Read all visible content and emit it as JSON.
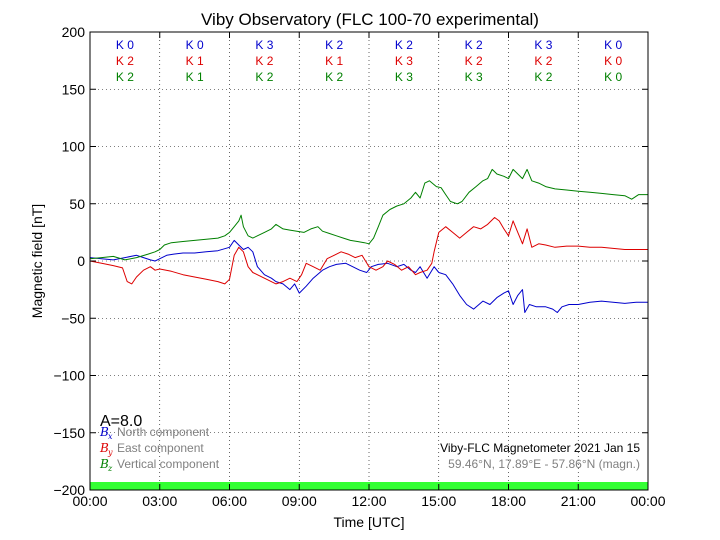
{
  "chart_data": {
    "type": "line",
    "title": "Viby Observatory (FLC 100-70 experimental)",
    "xlabel": "Time [UTC]",
    "ylabel": "Magnetic field [nT]",
    "xlim": [
      0,
      24
    ],
    "ylim": [
      -200,
      200
    ],
    "grid": true,
    "x_ticks": [
      0,
      3,
      6,
      9,
      12,
      15,
      18,
      21,
      24
    ],
    "x_tick_labels": [
      "00:00",
      "03:00",
      "06:00",
      "09:00",
      "12:00",
      "15:00",
      "18:00",
      "21:00",
      "00:00"
    ],
    "y_ticks": [
      -200,
      -150,
      -100,
      -50,
      0,
      50,
      100,
      150,
      200
    ],
    "y_tick_labels": [
      "−200",
      "−150",
      "−100",
      "−50",
      "0",
      "50",
      "100",
      "150",
      "200"
    ],
    "k_indices": {
      "centers": [
        1.5,
        4.5,
        7.5,
        10.5,
        13.5,
        16.5,
        19.5,
        22.5
      ],
      "rows": [
        {
          "color": "#0000cc",
          "labels": [
            "K 0",
            "K 0",
            "K 3",
            "K 2",
            "K 2",
            "K 2",
            "K 3",
            "K 0"
          ]
        },
        {
          "color": "#dd0000",
          "labels": [
            "K 2",
            "K 1",
            "K 2",
            "K 1",
            "K 3",
            "K 2",
            "K 2",
            "K 0"
          ]
        },
        {
          "color": "#008000",
          "labels": [
            "K 2",
            "K 1",
            "K 2",
            "K 2",
            "K 3",
            "K 3",
            "K 2",
            "K 0"
          ]
        }
      ]
    },
    "a_index": "A=8.0",
    "legend": {
      "position": "bottom-left",
      "entries": [
        {
          "symbol": "B",
          "sub": "x",
          "text": "North component",
          "color": "#0000cc"
        },
        {
          "symbol": "B",
          "sub": "y",
          "text": "East component",
          "color": "#dd0000"
        },
        {
          "symbol": "B",
          "sub": "z",
          "text": "Vertical component",
          "color": "#008000"
        }
      ]
    },
    "info": {
      "line1": "Viby-FLC Magnetometer 2021 Jan 15",
      "line2": "59.46°N, 17.89°E - 57.86°N (magn.)"
    },
    "status_bar_color": "#33ff33",
    "series": [
      {
        "name": "B_x North component",
        "color": "#0000cc",
        "points": [
          [
            0,
            3
          ],
          [
            0.5,
            2
          ],
          [
            1,
            1
          ],
          [
            1.5,
            3
          ],
          [
            2,
            5
          ],
          [
            2.3,
            3
          ],
          [
            2.6,
            1
          ],
          [
            2.8,
            0
          ],
          [
            3,
            2
          ],
          [
            3.3,
            5
          ],
          [
            3.6,
            6
          ],
          [
            4,
            7
          ],
          [
            4.5,
            7
          ],
          [
            5,
            8
          ],
          [
            5.5,
            9
          ],
          [
            6,
            12
          ],
          [
            6.2,
            18
          ],
          [
            6.4,
            14
          ],
          [
            6.6,
            10
          ],
          [
            6.8,
            12
          ],
          [
            7,
            8
          ],
          [
            7.2,
            -5
          ],
          [
            7.5,
            -12
          ],
          [
            7.8,
            -15
          ],
          [
            8,
            -18
          ],
          [
            8.3,
            -20
          ],
          [
            8.6,
            -25
          ],
          [
            8.8,
            -20
          ],
          [
            9,
            -28
          ],
          [
            9.3,
            -22
          ],
          [
            9.6,
            -15
          ],
          [
            10,
            -8
          ],
          [
            10.3,
            -5
          ],
          [
            10.6,
            -3
          ],
          [
            11,
            -2
          ],
          [
            11.3,
            -5
          ],
          [
            11.6,
            -8
          ],
          [
            11.9,
            -10
          ],
          [
            12.1,
            -5
          ],
          [
            12.4,
            -3
          ],
          [
            12.8,
            -2
          ],
          [
            13.2,
            -5
          ],
          [
            13.5,
            -3
          ],
          [
            13.8,
            -8
          ],
          [
            14,
            -10
          ],
          [
            14.2,
            -5
          ],
          [
            14.5,
            -15
          ],
          [
            14.8,
            -5
          ],
          [
            15,
            -10
          ],
          [
            15.3,
            -12
          ],
          [
            15.6,
            -20
          ],
          [
            15.9,
            -30
          ],
          [
            16.2,
            -38
          ],
          [
            16.5,
            -42
          ],
          [
            16.9,
            -35
          ],
          [
            17.2,
            -38
          ],
          [
            17.5,
            -32
          ],
          [
            17.8,
            -28
          ],
          [
            18,
            -26
          ],
          [
            18.2,
            -38
          ],
          [
            18.4,
            -30
          ],
          [
            18.6,
            -25
          ],
          [
            18.7,
            -45
          ],
          [
            18.9,
            -38
          ],
          [
            19.2,
            -40
          ],
          [
            19.6,
            -40
          ],
          [
            19.9,
            -42
          ],
          [
            20.1,
            -45
          ],
          [
            20.3,
            -40
          ],
          [
            20.6,
            -38
          ],
          [
            21,
            -38
          ],
          [
            21.5,
            -36
          ],
          [
            22,
            -35
          ],
          [
            22.5,
            -36
          ],
          [
            23,
            -37
          ],
          [
            23.5,
            -36
          ],
          [
            24,
            -36
          ]
        ]
      },
      {
        "name": "B_y East component",
        "color": "#dd0000",
        "points": [
          [
            0,
            0
          ],
          [
            0.5,
            -2
          ],
          [
            1,
            -4
          ],
          [
            1.4,
            -6
          ],
          [
            1.6,
            -18
          ],
          [
            1.8,
            -20
          ],
          [
            2,
            -14
          ],
          [
            2.3,
            -8
          ],
          [
            2.6,
            -5
          ],
          [
            2.8,
            -8
          ],
          [
            3,
            -7
          ],
          [
            3.5,
            -9
          ],
          [
            4,
            -12
          ],
          [
            4.5,
            -14
          ],
          [
            5,
            -16
          ],
          [
            5.5,
            -18
          ],
          [
            5.8,
            -20
          ],
          [
            6,
            -16
          ],
          [
            6.2,
            5
          ],
          [
            6.4,
            12
          ],
          [
            6.6,
            8
          ],
          [
            6.8,
            -5
          ],
          [
            7,
            -10
          ],
          [
            7.5,
            -15
          ],
          [
            8,
            -20
          ],
          [
            8.3,
            -18
          ],
          [
            8.6,
            -15
          ],
          [
            8.9,
            -18
          ],
          [
            9.1,
            -12
          ],
          [
            9.3,
            -2
          ],
          [
            9.6,
            -5
          ],
          [
            9.9,
            -8
          ],
          [
            10.2,
            2
          ],
          [
            10.5,
            5
          ],
          [
            10.8,
            8
          ],
          [
            11.1,
            6
          ],
          [
            11.4,
            3
          ],
          [
            11.7,
            5
          ],
          [
            12,
            -5
          ],
          [
            12.3,
            -8
          ],
          [
            12.6,
            -5
          ],
          [
            12.8,
            0
          ],
          [
            13.1,
            -3
          ],
          [
            13.4,
            -8
          ],
          [
            13.7,
            -5
          ],
          [
            14,
            -12
          ],
          [
            14.2,
            -10
          ],
          [
            14.5,
            -8
          ],
          [
            14.7,
            -2
          ],
          [
            14.8,
            8
          ],
          [
            15,
            25
          ],
          [
            15.3,
            30
          ],
          [
            15.6,
            25
          ],
          [
            15.9,
            20
          ],
          [
            16.2,
            25
          ],
          [
            16.5,
            30
          ],
          [
            16.8,
            28
          ],
          [
            17.1,
            32
          ],
          [
            17.4,
            38
          ],
          [
            17.6,
            35
          ],
          [
            17.8,
            28
          ],
          [
            18,
            22
          ],
          [
            18.2,
            35
          ],
          [
            18.4,
            25
          ],
          [
            18.6,
            15
          ],
          [
            18.8,
            28
          ],
          [
            19,
            12
          ],
          [
            19.3,
            15
          ],
          [
            19.6,
            14
          ],
          [
            20,
            12
          ],
          [
            20.5,
            13
          ],
          [
            21,
            13
          ],
          [
            21.5,
            12
          ],
          [
            22,
            12
          ],
          [
            22.5,
            11
          ],
          [
            23,
            10
          ],
          [
            23.5,
            10
          ],
          [
            24,
            10
          ]
        ]
      },
      {
        "name": "B_z Vertical component",
        "color": "#008000",
        "points": [
          [
            0,
            2
          ],
          [
            0.5,
            3
          ],
          [
            1,
            4
          ],
          [
            1.5,
            1
          ],
          [
            2,
            3
          ],
          [
            2.5,
            6
          ],
          [
            2.8,
            8
          ],
          [
            3,
            10
          ],
          [
            3.2,
            14
          ],
          [
            3.5,
            16
          ],
          [
            4,
            17
          ],
          [
            4.5,
            18
          ],
          [
            5,
            19
          ],
          [
            5.5,
            20
          ],
          [
            5.8,
            22
          ],
          [
            6,
            25
          ],
          [
            6.2,
            30
          ],
          [
            6.4,
            35
          ],
          [
            6.5,
            40
          ],
          [
            6.6,
            30
          ],
          [
            6.8,
            22
          ],
          [
            7,
            20
          ],
          [
            7.2,
            22
          ],
          [
            7.5,
            25
          ],
          [
            7.8,
            28
          ],
          [
            8,
            32
          ],
          [
            8.3,
            28
          ],
          [
            8.6,
            27
          ],
          [
            8.9,
            26
          ],
          [
            9.2,
            25
          ],
          [
            9.5,
            28
          ],
          [
            9.8,
            30
          ],
          [
            10,
            26
          ],
          [
            10.3,
            24
          ],
          [
            10.6,
            22
          ],
          [
            10.9,
            20
          ],
          [
            11.2,
            18
          ],
          [
            11.5,
            17
          ],
          [
            11.8,
            16
          ],
          [
            12,
            15
          ],
          [
            12.2,
            20
          ],
          [
            12.4,
            30
          ],
          [
            12.6,
            40
          ],
          [
            12.9,
            45
          ],
          [
            13.2,
            48
          ],
          [
            13.5,
            50
          ],
          [
            13.8,
            55
          ],
          [
            14,
            60
          ],
          [
            14.2,
            55
          ],
          [
            14.4,
            68
          ],
          [
            14.6,
            70
          ],
          [
            14.9,
            65
          ],
          [
            15.1,
            64
          ],
          [
            15.3,
            58
          ],
          [
            15.5,
            52
          ],
          [
            15.8,
            50
          ],
          [
            16,
            52
          ],
          [
            16.3,
            60
          ],
          [
            16.6,
            65
          ],
          [
            16.9,
            70
          ],
          [
            17.1,
            72
          ],
          [
            17.3,
            80
          ],
          [
            17.5,
            76
          ],
          [
            17.8,
            74
          ],
          [
            18,
            72
          ],
          [
            18.2,
            80
          ],
          [
            18.4,
            76
          ],
          [
            18.6,
            72
          ],
          [
            18.8,
            80
          ],
          [
            19,
            70
          ],
          [
            19.3,
            68
          ],
          [
            19.6,
            65
          ],
          [
            20,
            63
          ],
          [
            20.5,
            62
          ],
          [
            21,
            61
          ],
          [
            21.5,
            60
          ],
          [
            22,
            59
          ],
          [
            22.5,
            58
          ],
          [
            23,
            57
          ],
          [
            23.3,
            54
          ],
          [
            23.6,
            58
          ],
          [
            24,
            58
          ]
        ]
      }
    ]
  }
}
